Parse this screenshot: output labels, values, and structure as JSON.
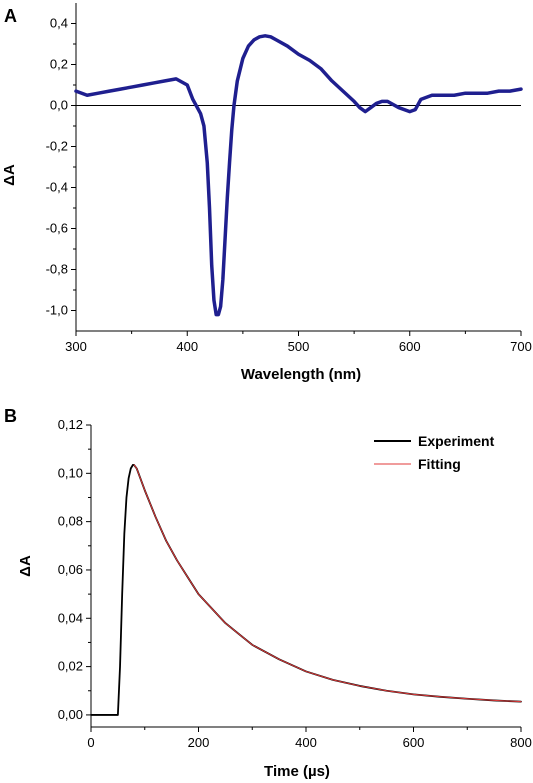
{
  "chart_data": [
    {
      "panel": "A",
      "type": "line",
      "xlabel": "Wavelength (nm)",
      "ylabel": "ΔA",
      "xlim": [
        300,
        700
      ],
      "ylim": [
        -1.1,
        0.5
      ],
      "x_ticks": [
        300,
        400,
        500,
        600,
        700
      ],
      "x_tick_labels": [
        "300",
        "400",
        "500",
        "600",
        "700"
      ],
      "y_ticks": [
        0.4,
        0.2,
        0.0,
        -0.2,
        -0.4,
        -0.6,
        -0.8,
        -1.0
      ],
      "y_tick_labels": [
        "0,4",
        "0,2",
        "0,0",
        "-0,2",
        "-0,4",
        "-0,6",
        "-0,8",
        "-1,0"
      ],
      "zero_line": true,
      "grid": false,
      "series": [
        {
          "color": "#1f1f8f",
          "x": [
            300,
            310,
            320,
            330,
            340,
            350,
            360,
            370,
            380,
            390,
            400,
            405,
            410,
            412,
            415,
            418,
            420,
            422,
            424,
            426,
            428,
            430,
            432,
            434,
            436,
            438,
            440,
            442,
            445,
            450,
            455,
            460,
            465,
            470,
            475,
            480,
            490,
            500,
            510,
            520,
            530,
            540,
            550,
            555,
            560,
            565,
            570,
            575,
            580,
            590,
            600,
            605,
            610,
            620,
            630,
            640,
            650,
            660,
            670,
            680,
            690,
            700
          ],
          "y": [
            0.07,
            0.05,
            0.06,
            0.07,
            0.08,
            0.09,
            0.1,
            0.11,
            0.12,
            0.13,
            0.1,
            0.03,
            -0.02,
            -0.04,
            -0.1,
            -0.28,
            -0.5,
            -0.78,
            -0.95,
            -1.02,
            -1.02,
            -0.98,
            -0.85,
            -0.65,
            -0.45,
            -0.28,
            -0.12,
            0.0,
            0.12,
            0.23,
            0.29,
            0.32,
            0.335,
            0.34,
            0.335,
            0.32,
            0.29,
            0.25,
            0.22,
            0.18,
            0.12,
            0.07,
            0.02,
            -0.01,
            -0.03,
            -0.01,
            0.01,
            0.02,
            0.02,
            -0.01,
            -0.03,
            -0.02,
            0.03,
            0.05,
            0.05,
            0.05,
            0.06,
            0.06,
            0.06,
            0.07,
            0.07,
            0.08
          ]
        }
      ]
    },
    {
      "panel": "B",
      "type": "line",
      "xlabel": "Time (µs)",
      "ylabel": "ΔA",
      "xlim": [
        0,
        800
      ],
      "ylim": [
        -0.005,
        0.12
      ],
      "x_ticks": [
        0,
        200,
        400,
        600,
        800
      ],
      "x_tick_labels": [
        "0",
        "200",
        "400",
        "600",
        "800"
      ],
      "y_ticks": [
        0.0,
        0.02,
        0.04,
        0.06,
        0.08,
        0.1,
        0.12
      ],
      "y_tick_labels": [
        "0,00",
        "0,02",
        "0,04",
        "0,06",
        "0,08",
        "0,10",
        "0,12"
      ],
      "grid": false,
      "legend_position": "top-right",
      "series": [
        {
          "name": "Experiment",
          "color": "#000000",
          "x": [
            0,
            20,
            40,
            50,
            54,
            58,
            62,
            66,
            70,
            74,
            78,
            80,
            85,
            90,
            100,
            120,
            140,
            160,
            180,
            200,
            250,
            300,
            350,
            400,
            450,
            500,
            550,
            600,
            650,
            700,
            750,
            800
          ],
          "y": [
            0.0,
            0.0,
            0.0,
            0.0,
            0.02,
            0.05,
            0.075,
            0.09,
            0.098,
            0.102,
            0.1035,
            0.1035,
            0.102,
            0.099,
            0.093,
            0.082,
            0.072,
            0.064,
            0.057,
            0.05,
            0.038,
            0.029,
            0.023,
            0.018,
            0.0145,
            0.012,
            0.01,
            0.0085,
            0.0075,
            0.0067,
            0.006,
            0.0055
          ]
        },
        {
          "name": "Fitting",
          "color": "#e03a3a",
          "x": [
            80,
            85,
            90,
            100,
            120,
            140,
            160,
            180,
            200,
            250,
            300,
            350,
            400,
            450,
            500,
            550,
            600,
            650,
            700,
            750,
            800
          ],
          "y": [
            0.1035,
            0.102,
            0.099,
            0.093,
            0.082,
            0.072,
            0.064,
            0.057,
            0.05,
            0.038,
            0.029,
            0.023,
            0.018,
            0.0145,
            0.012,
            0.01,
            0.0085,
            0.0075,
            0.0067,
            0.006,
            0.0055
          ]
        }
      ]
    }
  ]
}
